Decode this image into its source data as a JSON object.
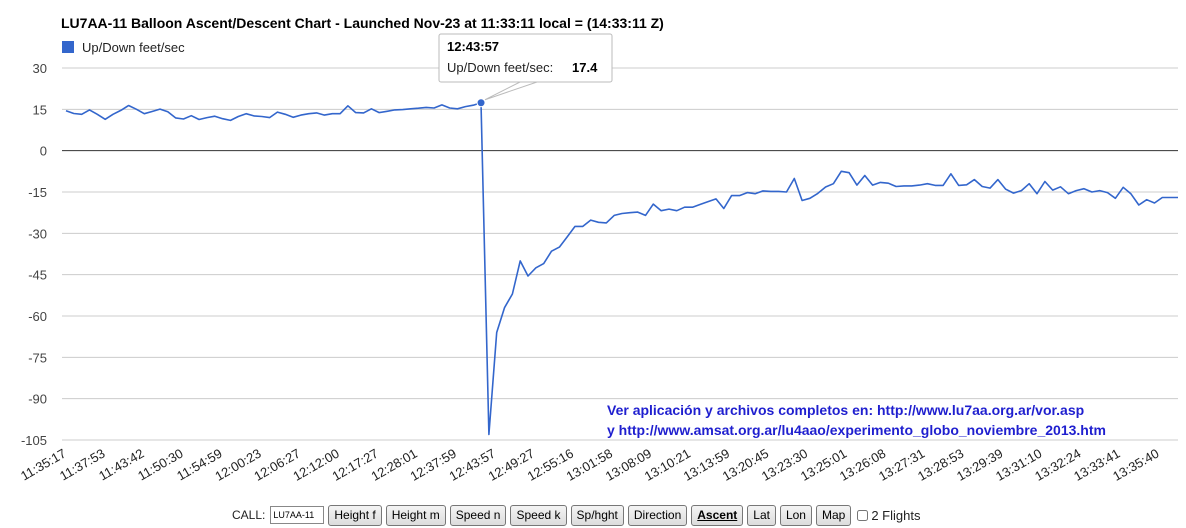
{
  "chart_data": {
    "type": "line",
    "title": "LU7AA-11 Balloon Ascent/Descent Chart - Launched Nov-23 at 11:33:11 local = (14:33:11 Z)",
    "legend": {
      "position": "top-left",
      "entries": [
        "Up/Down feet/sec"
      ]
    },
    "series": [
      {
        "name": "Up/Down feet/sec",
        "color": "#3366cc",
        "values": [
          14.5,
          13.5,
          13.2,
          14.8,
          13.2,
          11.4,
          13.2,
          14.6,
          16.4,
          15,
          13.4,
          14.2,
          15.1,
          14.1,
          11.9,
          11.5,
          12.7,
          11.3,
          12,
          12.5,
          11.6,
          11,
          12.4,
          13.4,
          12.6,
          12.4,
          12,
          14,
          13.2,
          12.1,
          12.9,
          13.4,
          13.7,
          12.9,
          13.4,
          13.4,
          16.3,
          13.8,
          13.7,
          15.2,
          13.8,
          14.3,
          14.8,
          14.9,
          15.2,
          15.4,
          15.7,
          15.5,
          16.6,
          15.5,
          15.2,
          16,
          16.5,
          17.4,
          -103,
          -66,
          -57,
          -52,
          -40,
          -45.5,
          -42.5,
          -41,
          -36.5,
          -35,
          -31.3,
          -27.5,
          -27.5,
          -25.2,
          -26,
          -26.2,
          -23.5,
          -22.8,
          -22.5,
          -22.3,
          -23.5,
          -19.4,
          -21.8,
          -21.2,
          -21.8,
          -20.5,
          -20.5,
          -19.5,
          -18.5,
          -17.5,
          -21,
          -16.3,
          -16.3,
          -15.2,
          -15.6,
          -14.6,
          -14.8,
          -14.8,
          -15,
          -10.1,
          -18.1,
          -17.3,
          -15.5,
          -13.2,
          -12,
          -7.5,
          -8,
          -12.5,
          -9,
          -12.5,
          -11.5,
          -11.8,
          -13,
          -12.8,
          -12.8,
          -12.5,
          -12,
          -12.6,
          -12.6,
          -8.4,
          -12.6,
          -12.4,
          -10.5,
          -13,
          -13.6,
          -10.5,
          -14,
          -15.4,
          -14.5,
          -12,
          -15.6,
          -11.2,
          -14.3,
          -13.1,
          -15.6,
          -14.5,
          -13.8,
          -15,
          -14.5,
          -15.2,
          -17.3,
          -13.3,
          -15.7,
          -19.7,
          -17.8,
          -19,
          -17,
          -17,
          -17
        ]
      }
    ],
    "x_ticks": [
      "11:35:17",
      "11:37:53",
      "11:43:42",
      "11:50:30",
      "11:54:59",
      "12:00:23",
      "12:06:27",
      "12:12:00",
      "12:17:27",
      "12:28:01",
      "12:37:59",
      "12:43:57",
      "12:49:27",
      "12:55:16",
      "13:01:58",
      "13:08:09",
      "13:10:21",
      "13:13:59",
      "13:20:45",
      "13:23:30",
      "13:25:01",
      "13:26:08",
      "13:27:31",
      "13:28:53",
      "13:29:39",
      "13:31:10",
      "13:32:24",
      "13:33:41",
      "13:35:40"
    ],
    "y_ticks": [
      30,
      15,
      0,
      -15,
      -30,
      -45,
      -60,
      -75,
      -90,
      -105
    ],
    "ylim": [
      -105,
      30
    ],
    "grid": true,
    "annotations": [
      "Ver aplicación y archivos completos en: http://www.lu7aa.org.ar/vor.asp",
      "y http://www.amsat.org.ar/lu4aao/experimento_globo_noviembre_2013.htm"
    ],
    "tooltip": {
      "time": "12:43:57",
      "label": "Up/Down feet/sec:",
      "value": "17.4",
      "point_index": 53
    }
  },
  "controls": {
    "call_label": "CALL:",
    "call_value": "LU7AA-11",
    "buttons": [
      "Height f",
      "Height m",
      "Speed n",
      "Speed k",
      "Sp/hght",
      "Direction",
      "Ascent",
      "Lat",
      "Lon",
      "Map"
    ],
    "active_button": "Ascent",
    "checkbox_label": "2 Flights",
    "checkbox_checked": false
  }
}
